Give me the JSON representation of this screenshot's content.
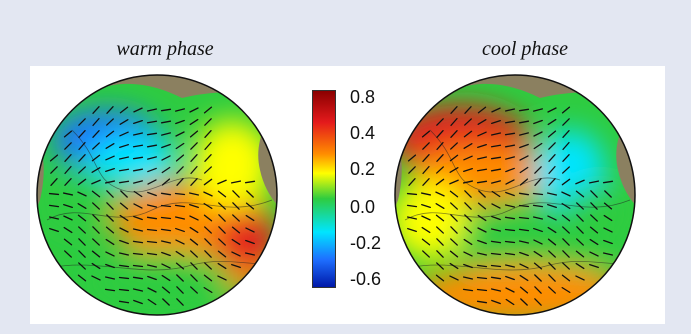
{
  "panels": {
    "warm": {
      "title": "warm phase"
    },
    "cool": {
      "title": "cool phase"
    }
  },
  "colorbar": {
    "ticks": [
      "0.8",
      "0.4",
      "0.2",
      "0.0",
      "-0.2",
      "-0.6"
    ],
    "colors": {
      "top": "#8b0000",
      "red": "#e41a1c",
      "orange": "#ff8c00",
      "yellow": "#ffff00",
      "green": "#2ecc40",
      "cyan": "#00e5ff",
      "blue": "#1e6fff",
      "bottom": "#0018a8"
    }
  },
  "colors": {
    "background": "#e3e7f2",
    "land": "#8b8060",
    "vector": "#111111"
  }
}
